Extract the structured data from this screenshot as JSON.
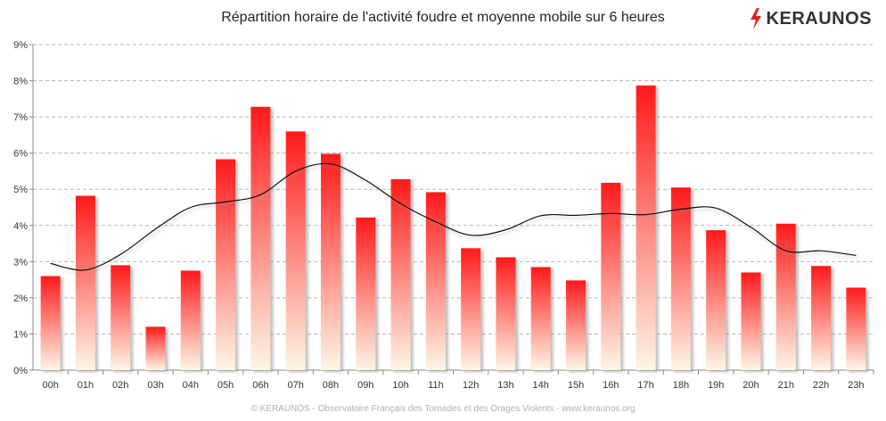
{
  "title": "Répartition horaire de l'activité foudre et moyenne mobile sur 6 heures",
  "logo": {
    "text": "KERAUNOS",
    "icon": "lightning-bolt-icon",
    "icon_color": "#e02020"
  },
  "footer": "© KERAUNOS - Observatoire Français des Tornades et des Orages Violents - www.keraunos.org",
  "colors": {
    "bar_top": "#ff1a1a",
    "bar_bottom": "#fdf6e6",
    "line": "#111111",
    "grid": "#b5b5b5"
  },
  "chart_data": {
    "type": "bar",
    "categories": [
      "00h",
      "01h",
      "02h",
      "03h",
      "04h",
      "05h",
      "06h",
      "07h",
      "08h",
      "09h",
      "10h",
      "11h",
      "12h",
      "13h",
      "14h",
      "15h",
      "16h",
      "17h",
      "18h",
      "19h",
      "20h",
      "21h",
      "22h",
      "23h"
    ],
    "series": [
      {
        "type": "bar",
        "values": [
          2.6,
          4.82,
          2.9,
          1.2,
          2.75,
          5.83,
          7.28,
          6.6,
          5.98,
          4.22,
          5.28,
          4.92,
          3.37,
          3.12,
          2.85,
          2.48,
          5.18,
          7.87,
          5.05,
          3.87,
          2.7,
          4.05,
          2.88,
          2.28
        ]
      },
      {
        "type": "line",
        "values": [
          2.95,
          2.77,
          3.2,
          3.9,
          4.5,
          4.65,
          4.85,
          5.5,
          5.7,
          5.25,
          4.6,
          4.1,
          3.73,
          3.88,
          4.27,
          4.28,
          4.33,
          4.3,
          4.45,
          4.48,
          3.95,
          3.3,
          3.3,
          3.17
        ]
      }
    ],
    "y_ticks": [
      "0%",
      "1%",
      "2%",
      "3%",
      "4%",
      "5%",
      "6%",
      "7%",
      "8%",
      "9%"
    ],
    "ylim": [
      0,
      9
    ],
    "grid": true,
    "legend": "none"
  }
}
